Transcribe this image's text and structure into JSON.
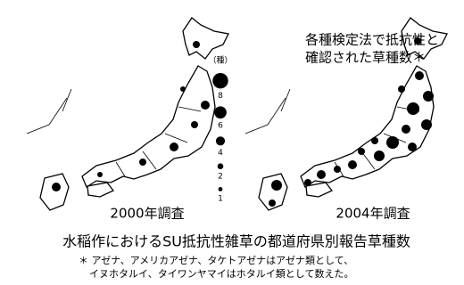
{
  "header": {
    "lines": [
      "各種検定法で抵抗性と",
      "確認された草種数＊"
    ]
  },
  "legend": {
    "unit": "（種）",
    "items": [
      8,
      6,
      4,
      2,
      1
    ]
  },
  "maps": [
    {
      "label": "2000年調査"
    },
    {
      "label": "2004年調査"
    }
  ],
  "caption": {
    "title": "水稲作におけるSU抵抗性雑草の都道府県別報告草種数",
    "notes": [
      "＊ アゼナ、アメリカアゼナ、タケトアゼナはアゼナ類として、",
      "イヌホタルイ、タイワンヤマイはホタルイ類として数えた。"
    ]
  }
}
